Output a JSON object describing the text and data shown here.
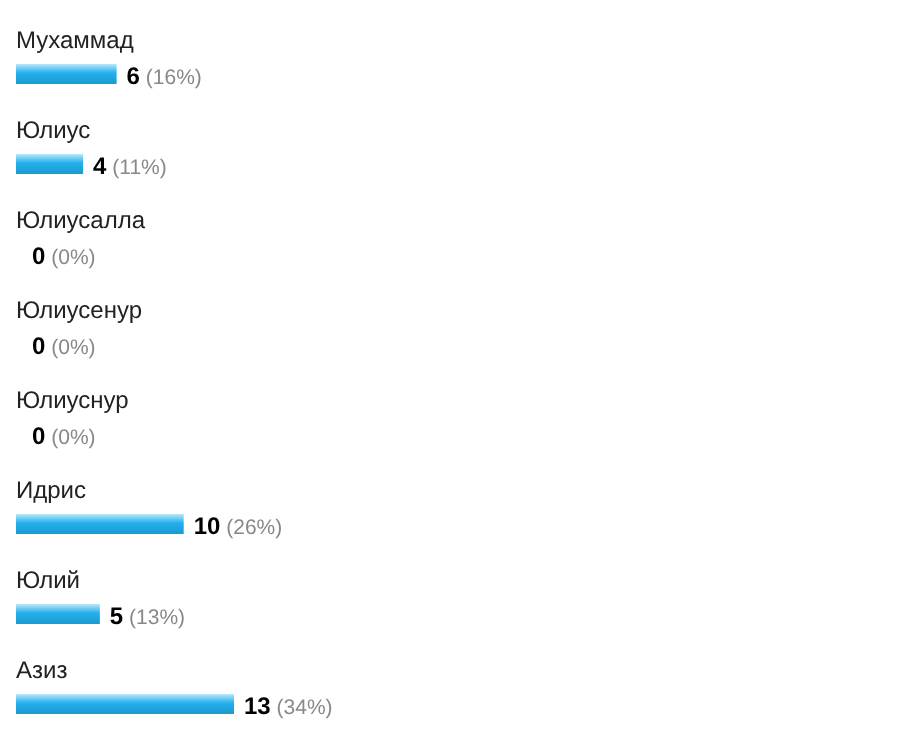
{
  "chart_data": {
    "type": "bar",
    "orientation": "horizontal",
    "categories": [
      "Мухаммад",
      "Юлиус",
      "Юлиусалла",
      "Юлиусенур",
      "Юлиуснур",
      "Идрис",
      "Юлий",
      "Азиз"
    ],
    "values": [
      6,
      4,
      0,
      0,
      0,
      10,
      5,
      13
    ],
    "color": "#22b0ee",
    "value_labels": [
      "6 (16%)",
      "4 (11%)",
      "0 (0%)",
      "0 (0%)",
      "0 (0%)",
      "10 (26%)",
      "5 (13%)",
      "13 (34%)"
    ]
  }
}
